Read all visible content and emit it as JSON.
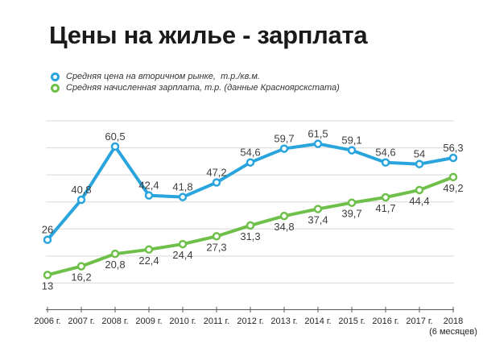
{
  "chart_data": {
    "type": "line",
    "title": "Цены на жилье - зарплата",
    "categories": [
      "2006 г.",
      "2007 г.",
      "2008 г.",
      "2009 г.",
      "2010 г.",
      "2011 г.",
      "2012 г.",
      "2013 г.",
      "2014 г.",
      "2015 г.",
      "2016 г.",
      "2017 г.",
      "2018"
    ],
    "last_category_note": "(6 месяцев)",
    "series": [
      {
        "name": "Средняя цена на вторичном рынке,  т.р./кв.м.",
        "color": "#29a4dc",
        "values": [
          26,
          40.8,
          60.5,
          42.4,
          41.8,
          47.2,
          54.6,
          59.7,
          61.5,
          59.1,
          54.6,
          54,
          56.3
        ],
        "labels": [
          "26",
          "40,8",
          "60,5",
          "42,4",
          "41,8",
          "47,2",
          "54,6",
          "59,7",
          "61,5",
          "59,1",
          "54,6",
          "54",
          "56,3"
        ],
        "label_position": "above"
      },
      {
        "name": "Средняя начисленная зарплата, т.р. (данные Красноярскстата)",
        "color": "#6fc04a",
        "values": [
          13,
          16.2,
          20.8,
          22.4,
          24.4,
          27.3,
          31.3,
          34.8,
          37.4,
          39.7,
          41.7,
          44.4,
          49.2
        ],
        "labels": [
          "13",
          "16,2",
          "20,8",
          "22,4",
          "24,4",
          "27,3",
          "31,3",
          "34,8",
          "37,4",
          "39,7",
          "41,7",
          "44,4",
          "49,2"
        ],
        "label_position": "below"
      }
    ],
    "xlabel": "",
    "ylabel": "",
    "ylim": [
      0,
      70
    ],
    "grid_step": 10,
    "grid": true,
    "y_axis_labels_visible": false,
    "legend_position": "top-left",
    "colors": {
      "grid": "#d9d9d9",
      "axis": "#595959",
      "axis_label": "#262626",
      "data_label": "#3d3d3d",
      "title": "#1a1a1a",
      "legend_text": "#333333",
      "background": "#ffffff"
    }
  }
}
